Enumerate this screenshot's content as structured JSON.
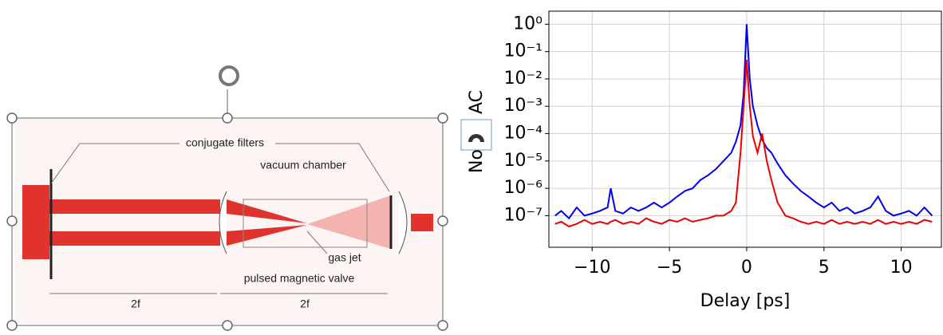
{
  "diagram": {
    "labels": [
      "conjugate filters",
      "vacuum chamber",
      "gas jet",
      "pulsed magnetic valve"
    ],
    "distances": [
      "2f",
      "2f"
    ]
  },
  "chart_data": {
    "type": "line",
    "xlabel": "Delay [ps]",
    "ylabel": "Norm. AC",
    "yscale": "log",
    "grid": true,
    "xlim": [
      -12.8,
      12.6
    ],
    "ylim": [
      7e-09,
      3
    ],
    "xticks": [
      {
        "value": -10,
        "label": "−10"
      },
      {
        "value": -5,
        "label": "−5"
      },
      0,
      5,
      10
    ],
    "yticks": [
      {
        "value": 1,
        "label": "10⁰"
      },
      {
        "value": 0.1,
        "label": "10⁻¹"
      },
      {
        "value": 0.01,
        "label": "10⁻²"
      },
      {
        "value": 0.001,
        "label": "10⁻³"
      },
      {
        "value": 0.0001,
        "label": "10⁻⁴"
      },
      {
        "value": 1e-05,
        "label": "10⁻⁵"
      },
      {
        "value": 1e-06,
        "label": "10⁻⁶"
      },
      {
        "value": 1e-07,
        "label": "10⁻⁷"
      }
    ],
    "x": [
      -12.4,
      -12,
      -11.5,
      -11,
      -10.5,
      -10,
      -9.5,
      -9,
      -8.8,
      -8.5,
      -8,
      -7.5,
      -7,
      -6.5,
      -6,
      -5.5,
      -5,
      -4.5,
      -4,
      -3.5,
      -3,
      -2.5,
      -2,
      -1.5,
      -1,
      -0.7,
      -0.4,
      -0.2,
      0,
      0.2,
      0.4,
      0.7,
      1,
      1.3,
      1.6,
      2,
      2.5,
      3,
      3.5,
      4,
      4.5,
      5,
      5.5,
      6,
      6.5,
      7,
      7.5,
      8,
      8.5,
      9,
      9.5,
      10,
      10.5,
      11,
      11.5,
      12
    ],
    "series": [
      {
        "color": "#0000ee",
        "values": [
          1e-07,
          1.5e-07,
          8e-08,
          2e-07,
          1e-07,
          1.2e-07,
          1.5e-07,
          2e-07,
          1e-06,
          1.5e-07,
          1.2e-07,
          2e-07,
          1.5e-07,
          2e-07,
          3e-07,
          2e-07,
          3e-07,
          5e-07,
          8e-07,
          1e-06,
          2e-06,
          3e-06,
          5e-06,
          1e-05,
          2e-05,
          5e-05,
          0.0002,
          0.003,
          1,
          0.01,
          0.001,
          0.0002,
          6e-05,
          3e-05,
          2e-05,
          8e-06,
          3e-06,
          1.5e-06,
          8e-07,
          5e-07,
          3e-07,
          2e-07,
          3e-07,
          1.5e-07,
          2e-07,
          1.2e-07,
          1.5e-07,
          2e-07,
          5e-07,
          1.5e-07,
          1e-07,
          1.2e-07,
          1.5e-07,
          1e-07,
          2e-07,
          1e-07
        ]
      },
      {
        "color": "#ee0000",
        "values": [
          5e-08,
          6e-08,
          4e-08,
          5e-08,
          7e-08,
          5e-08,
          6e-08,
          5e-08,
          6e-08,
          7e-08,
          5e-08,
          6e-08,
          5e-08,
          8e-08,
          6e-08,
          5e-08,
          7e-08,
          6e-08,
          8e-08,
          6e-08,
          7e-08,
          8e-08,
          1e-07,
          1e-07,
          1.5e-07,
          3e-07,
          2e-05,
          0.001,
          0.05,
          0.001,
          8e-05,
          2e-05,
          0.0001,
          1e-05,
          2e-06,
          3e-07,
          1e-07,
          8e-08,
          6e-08,
          5e-08,
          6e-08,
          5e-08,
          7e-08,
          5e-08,
          6e-08,
          5e-08,
          6e-08,
          5e-08,
          7e-08,
          5e-08,
          6e-08,
          5e-08,
          6e-08,
          5e-08,
          7e-08,
          6e-08
        ]
      }
    ]
  }
}
